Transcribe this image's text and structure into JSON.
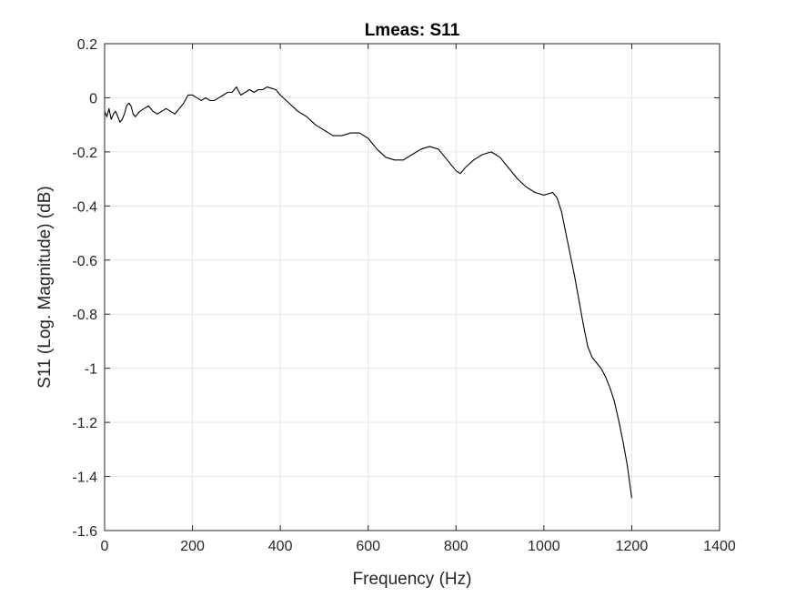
{
  "chart_data": {
    "type": "line",
    "title": "Lmeas: S11",
    "xlabel": "Frequency (Hz)",
    "ylabel": "S11 (Log. Magnitude) (dB)",
    "xlim": [
      0,
      1400
    ],
    "ylim": [
      -1.6,
      0.2
    ],
    "xticks": [
      0,
      200,
      400,
      600,
      800,
      1000,
      1200,
      1400
    ],
    "yticks": [
      0.2,
      0,
      -0.2,
      -0.4,
      -0.6,
      -0.8,
      -1,
      -1.2,
      -1.4,
      -1.6
    ],
    "xtick_labels": [
      "0",
      "200",
      "400",
      "600",
      "800",
      "1000",
      "1200",
      "1400"
    ],
    "ytick_labels": [
      "0.2",
      "0",
      "-0.2",
      "-0.4",
      "-0.6",
      "-0.8",
      "-1",
      "-1.2",
      "-1.4",
      "-1.6"
    ],
    "grid": true,
    "line_color": "#000000",
    "grid_color": "#e6e6e6",
    "series": [
      {
        "name": "S11",
        "x": [
          0,
          5,
          10,
          15,
          20,
          25,
          30,
          35,
          40,
          45,
          50,
          55,
          60,
          65,
          70,
          75,
          80,
          90,
          100,
          110,
          120,
          130,
          140,
          150,
          160,
          170,
          180,
          190,
          200,
          210,
          220,
          230,
          240,
          250,
          260,
          270,
          280,
          290,
          300,
          310,
          320,
          330,
          340,
          350,
          360,
          370,
          380,
          390,
          400,
          420,
          440,
          460,
          480,
          500,
          520,
          540,
          560,
          580,
          600,
          620,
          640,
          660,
          680,
          700,
          720,
          740,
          760,
          780,
          800,
          810,
          820,
          840,
          860,
          880,
          900,
          920,
          940,
          960,
          980,
          1000,
          1020,
          1030,
          1040,
          1050,
          1060,
          1070,
          1080,
          1090,
          1100,
          1110,
          1120,
          1130,
          1140,
          1150,
          1160,
          1170,
          1180,
          1190,
          1200
        ],
        "y": [
          -0.05,
          -0.07,
          -0.04,
          -0.08,
          -0.06,
          -0.05,
          -0.07,
          -0.09,
          -0.08,
          -0.06,
          -0.03,
          -0.02,
          -0.03,
          -0.06,
          -0.07,
          -0.06,
          -0.05,
          -0.04,
          -0.03,
          -0.05,
          -0.06,
          -0.05,
          -0.04,
          -0.05,
          -0.06,
          -0.04,
          -0.02,
          0.01,
          0.01,
          0.0,
          -0.01,
          0.0,
          -0.01,
          -0.01,
          0.0,
          0.01,
          0.02,
          0.02,
          0.04,
          0.01,
          0.02,
          0.03,
          0.02,
          0.03,
          0.03,
          0.04,
          0.035,
          0.03,
          0.01,
          -0.02,
          -0.05,
          -0.07,
          -0.1,
          -0.12,
          -0.14,
          -0.14,
          -0.13,
          -0.13,
          -0.15,
          -0.19,
          -0.22,
          -0.23,
          -0.23,
          -0.21,
          -0.19,
          -0.18,
          -0.19,
          -0.23,
          -0.27,
          -0.28,
          -0.26,
          -0.23,
          -0.21,
          -0.2,
          -0.22,
          -0.26,
          -0.3,
          -0.33,
          -0.35,
          -0.36,
          -0.35,
          -0.37,
          -0.42,
          -0.5,
          -0.58,
          -0.66,
          -0.75,
          -0.84,
          -0.92,
          -0.96,
          -0.98,
          -1.0,
          -1.03,
          -1.07,
          -1.12,
          -1.19,
          -1.27,
          -1.36,
          -1.48
        ]
      }
    ]
  }
}
